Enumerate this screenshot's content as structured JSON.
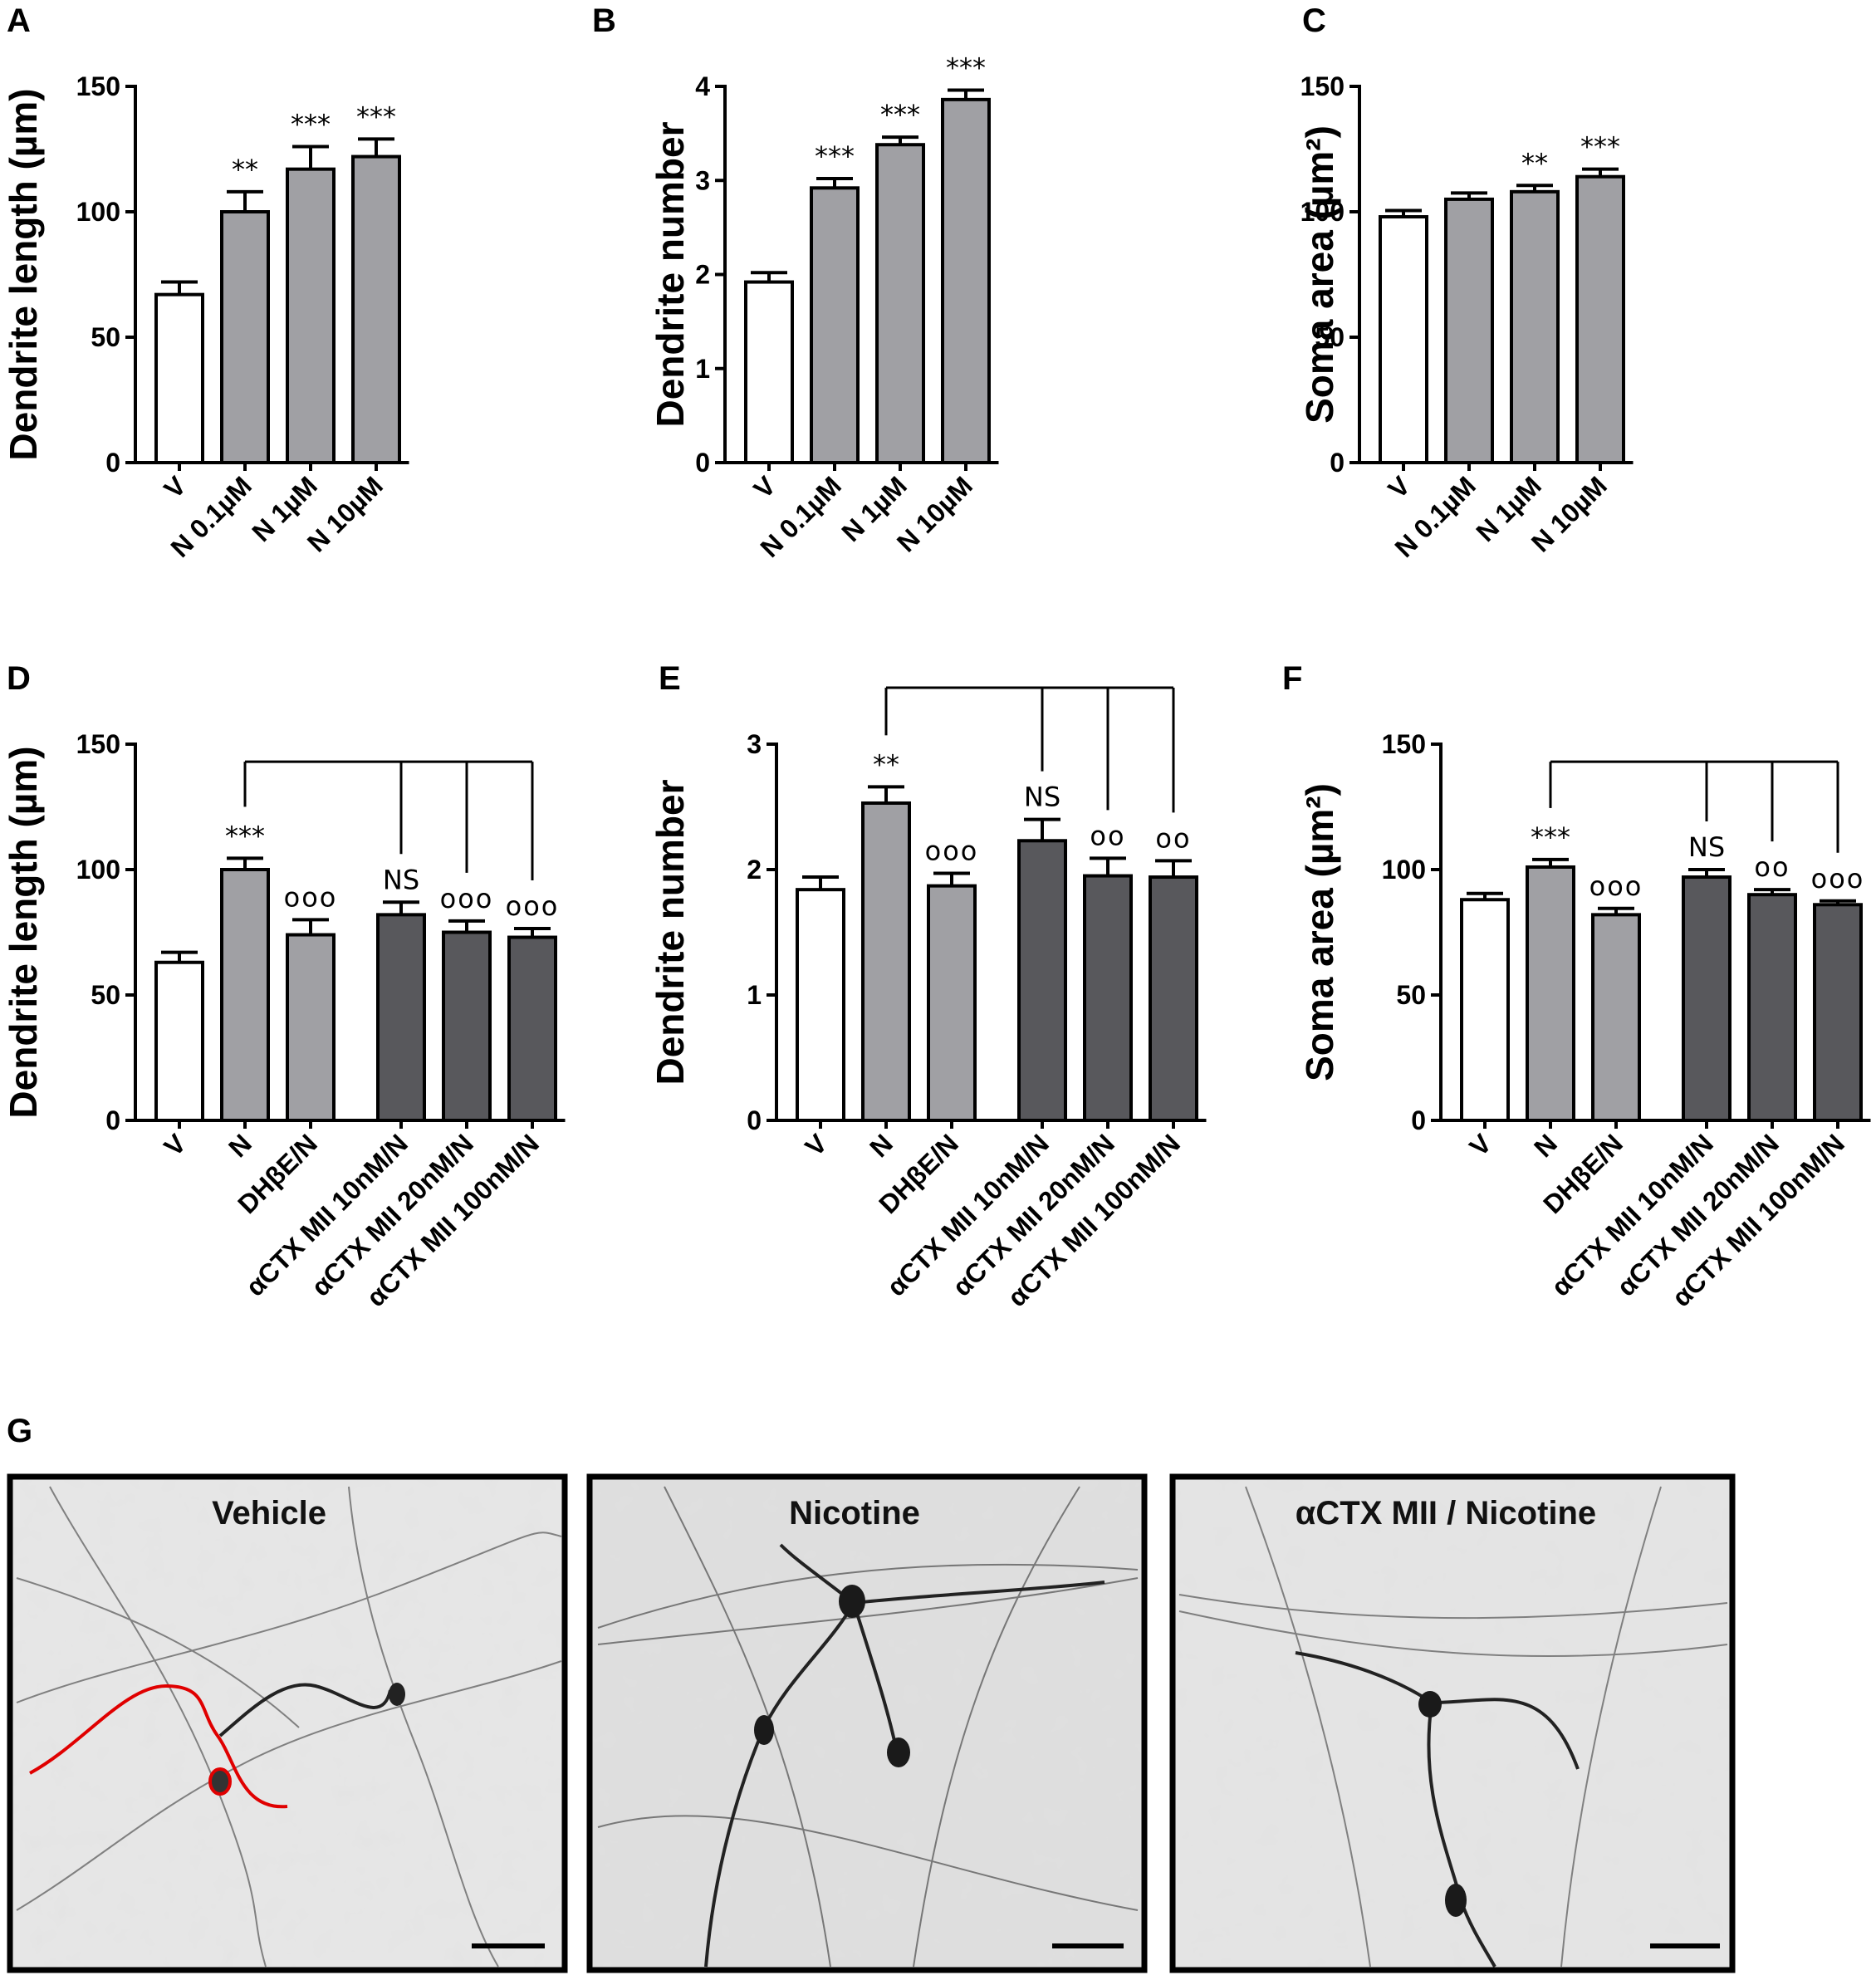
{
  "chart_data": [
    {
      "id": "A",
      "letter": "A",
      "type": "bar",
      "ylabel": "Dendrite length (µm)",
      "ylim": [
        0,
        150
      ],
      "yticks": [
        0,
        50,
        100,
        150
      ],
      "categories": [
        "V",
        "N 0.1µM",
        "N 1µM",
        "N 10µM"
      ],
      "values": [
        67,
        100,
        117,
        122
      ],
      "errors": [
        5,
        8,
        9,
        7
      ],
      "colors": [
        "#ffffff",
        "#a0a0a4",
        "#a0a0a4",
        "#a0a0a4"
      ],
      "annotations": [
        "",
        "**",
        "***",
        "***"
      ],
      "bracket": null
    },
    {
      "id": "B",
      "letter": "B",
      "type": "bar",
      "ylabel": "Dendrite number",
      "ylim": [
        0,
        4
      ],
      "yticks": [
        0,
        1,
        2,
        3,
        4
      ],
      "categories": [
        "V",
        "N 0.1µM",
        "N 1µM",
        "N 10µM"
      ],
      "values": [
        1.92,
        2.92,
        3.38,
        3.86
      ],
      "errors": [
        0.1,
        0.1,
        0.08,
        0.1
      ],
      "colors": [
        "#ffffff",
        "#a0a0a4",
        "#a0a0a4",
        "#a0a0a4"
      ],
      "annotations": [
        "",
        "***",
        "***",
        "***"
      ],
      "bracket": null
    },
    {
      "id": "C",
      "letter": "C",
      "type": "bar",
      "ylabel": "Soma area (µm²)",
      "ylim": [
        0,
        150
      ],
      "yticks": [
        0,
        50,
        100,
        150
      ],
      "categories": [
        "V",
        "N 0.1µM",
        "N 1µM",
        "N 10µM"
      ],
      "values": [
        98,
        105,
        108,
        114
      ],
      "errors": [
        2.5,
        2.5,
        2.5,
        3
      ],
      "colors": [
        "#ffffff",
        "#a0a0a4",
        "#a0a0a4",
        "#a0a0a4"
      ],
      "annotations": [
        "",
        "",
        "**",
        "***"
      ],
      "bracket": null
    },
    {
      "id": "D",
      "letter": "D",
      "type": "bar",
      "ylabel": "Dendrite length (µm)",
      "ylim": [
        0,
        150
      ],
      "yticks": [
        0,
        50,
        100,
        150
      ],
      "categories": [
        "V",
        "N",
        "DHβE/N",
        "αCTX MII 10nM/N",
        "αCTX MII 20nM/N",
        "αCTX MII 100nM/N"
      ],
      "values": [
        63,
        100,
        74,
        82,
        75,
        73
      ],
      "errors": [
        4,
        4.5,
        6,
        5,
        4.5,
        3.5
      ],
      "colors": [
        "#ffffff",
        "#a0a0a4",
        "#a0a0a4",
        "#58585c",
        "#58585c",
        "#58585c"
      ],
      "annotations": [
        "",
        "***",
        "ooo",
        "NS",
        "ooo",
        "ooo"
      ],
      "bracket": {
        "from": 1,
        "to": [
          3,
          4,
          5
        ],
        "level": 143
      }
    },
    {
      "id": "E",
      "letter": "E",
      "type": "bar",
      "ylabel": "Dendrite number",
      "ylim": [
        0,
        3
      ],
      "yticks": [
        0,
        1,
        2,
        3
      ],
      "categories": [
        "V",
        "N",
        "DHβE/N",
        "αCTX MII 10nM/N",
        "αCTX MII 20nM/N",
        "αCTX MII 100nM/N"
      ],
      "values": [
        1.84,
        2.53,
        1.87,
        2.23,
        1.95,
        1.94
      ],
      "errors": [
        0.1,
        0.13,
        0.1,
        0.17,
        0.14,
        0.13
      ],
      "colors": [
        "#ffffff",
        "#a0a0a4",
        "#a0a0a4",
        "#58585c",
        "#58585c",
        "#58585c"
      ],
      "annotations": [
        "",
        "**",
        "ooo",
        "NS",
        "oo",
        "oo"
      ],
      "bracket": {
        "from": 1,
        "to": [
          3,
          4,
          5
        ],
        "level": 3.45
      }
    },
    {
      "id": "F",
      "letter": "F",
      "type": "bar",
      "ylabel": "Soma area (µm²)",
      "ylim": [
        0,
        150
      ],
      "yticks": [
        0,
        50,
        100,
        150
      ],
      "categories": [
        "V",
        "N",
        "DHβE/N",
        "αCTX MII 10nM/N",
        "αCTX MII 20nM/N",
        "αCTX MII 100nM/N"
      ],
      "values": [
        88,
        101,
        82,
        97,
        90,
        86
      ],
      "errors": [
        2.5,
        3,
        2.5,
        3,
        2,
        1.5
      ],
      "colors": [
        "#ffffff",
        "#a0a0a4",
        "#a0a0a4",
        "#58585c",
        "#58585c",
        "#58585c"
      ],
      "annotations": [
        "",
        "***",
        "ooo",
        "NS",
        "oo",
        "ooo"
      ],
      "bracket": {
        "from": 1,
        "to": [
          3,
          4,
          5
        ],
        "level": 143
      }
    }
  ],
  "micrographs": {
    "letter": "G",
    "panels": [
      {
        "title": "Vehicle"
      },
      {
        "title": "Nicotine"
      },
      {
        "title": "αCTX MII / Nicotine"
      }
    ]
  }
}
